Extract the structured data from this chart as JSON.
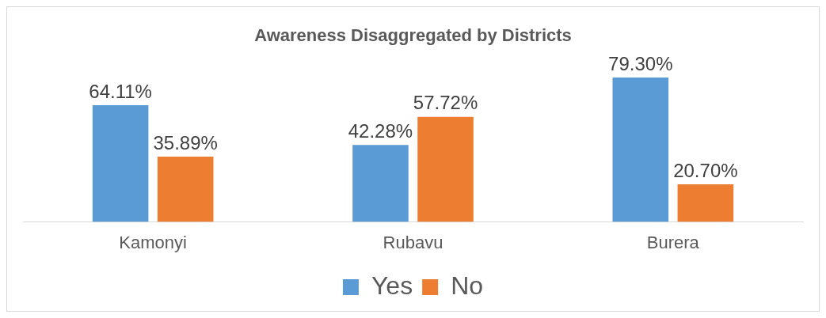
{
  "chart_data": {
    "type": "bar",
    "title": "Awareness Disaggregated by Districts",
    "categories": [
      "Kamonyi",
      "Rubavu",
      "Burera"
    ],
    "series": [
      {
        "name": "Yes",
        "color": "#5b9bd5",
        "values": [
          64.11,
          42.28,
          79.3
        ],
        "value_labels": [
          "64.11%",
          "42.28%",
          "79.30%"
        ]
      },
      {
        "name": "No",
        "color": "#ed7d31",
        "values": [
          35.89,
          57.72,
          20.7
        ],
        "value_labels": [
          "35.89%",
          "57.72%",
          "20.70%"
        ]
      }
    ],
    "grid": false,
    "legend": "bottom"
  }
}
